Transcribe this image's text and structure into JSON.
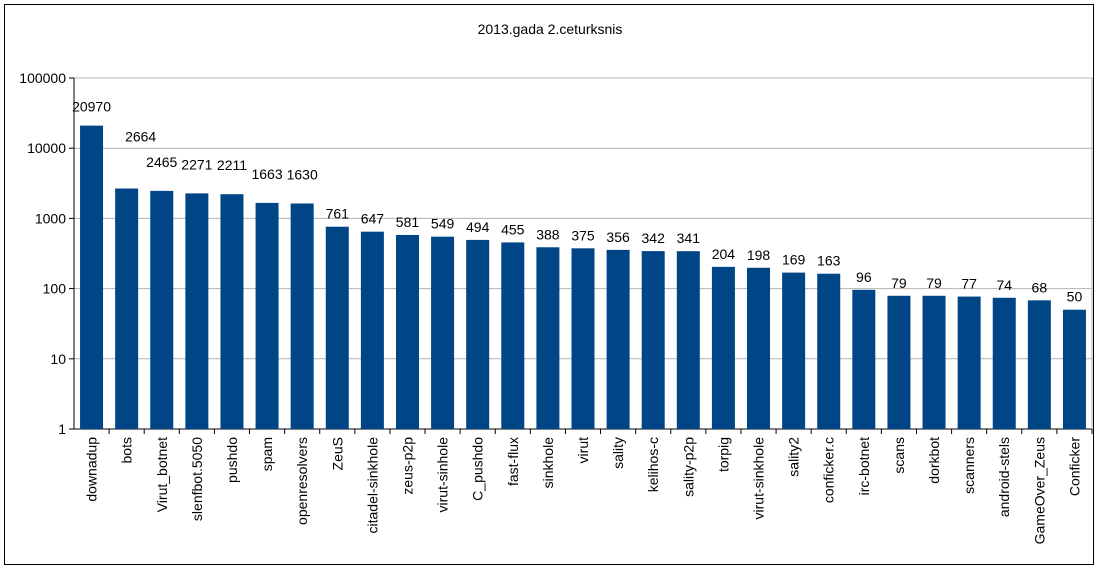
{
  "chart_data": {
    "type": "bar",
    "title": "2013.gada 2.ceturksnis",
    "xlabel": "",
    "ylabel": "",
    "yscale": "log",
    "ylim": [
      1,
      100000
    ],
    "yticks": [
      "1",
      "10",
      "100",
      "1000",
      "10000",
      "100000"
    ],
    "grid": true,
    "legend": "none",
    "bar_color": "#004586",
    "categories": [
      "downadup",
      "bots",
      "Virut_botnet",
      "slenfbot.5050",
      "pushdo",
      "spam",
      "openresolvers",
      "ZeuS",
      "citadel-sinkhole",
      "zeus-p2p",
      "virut-sinhole",
      "C_pushdo",
      "fast-flux",
      "sinkhole",
      "virut",
      "sality",
      "kelihos-c",
      "sality-p2p",
      "torpig",
      "virut-sinkhole",
      "sality2",
      "conficker.c",
      "irc-botnet",
      "scans",
      "dorkbot",
      "scanners",
      "android-stels",
      "GameOver_Zeus",
      "Conficker"
    ],
    "values": [
      20970,
      2664,
      2465,
      2271,
      2211,
      1663,
      1630,
      761,
      647,
      581,
      549,
      494,
      455,
      388,
      375,
      356,
      342,
      341,
      204,
      198,
      169,
      163,
      96,
      79,
      79,
      77,
      74,
      68,
      50
    ]
  }
}
